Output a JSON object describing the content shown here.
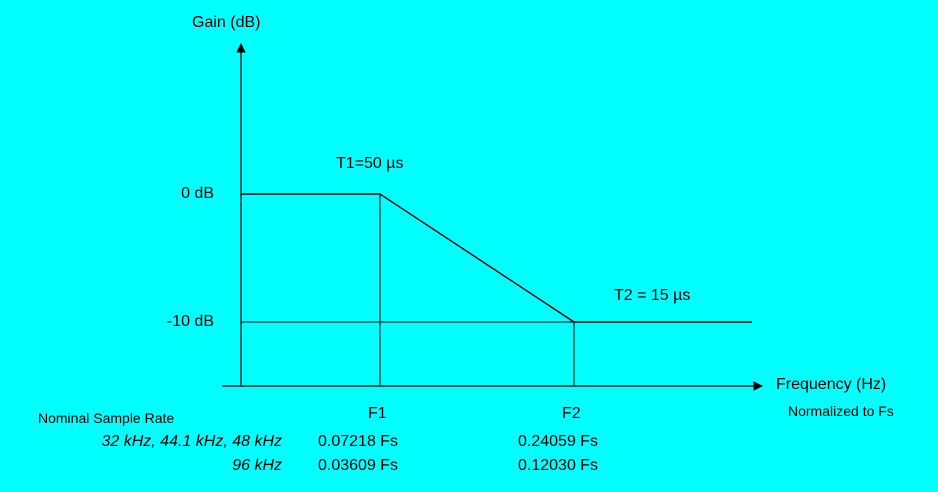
{
  "chart_data": {
    "type": "line",
    "title": "",
    "ylabel": "Gain (dB)",
    "xlabel": "Frequency (Hz)",
    "xlabel_sub": "Normalized to Fs",
    "y_ticks": [
      "0 dB",
      "-10 dB"
    ],
    "x_ticks": [
      "F1",
      "F2"
    ],
    "series": [
      {
        "points": [
          {
            "x": "0",
            "y": 0
          },
          {
            "x": "F1",
            "y": 0
          },
          {
            "x": "F2",
            "y": -10
          },
          {
            "x": "end",
            "y": -10
          }
        ]
      }
    ],
    "annotations": [
      "T1=50 µs",
      "T2 = 15 µs"
    ],
    "table": {
      "header": "Nominal Sample Rate",
      "rows": [
        {
          "rate": "32 kHz, 44.1 kHz, 48 kHz",
          "f1": "0.07218 Fs",
          "f2": "0.24059 Fs"
        },
        {
          "rate": "96 kHz",
          "f1": "0.03609 Fs",
          "f2": "0.12030 Fs"
        }
      ]
    },
    "colors": {
      "background": "#00FFFF",
      "line": "#000000"
    }
  }
}
